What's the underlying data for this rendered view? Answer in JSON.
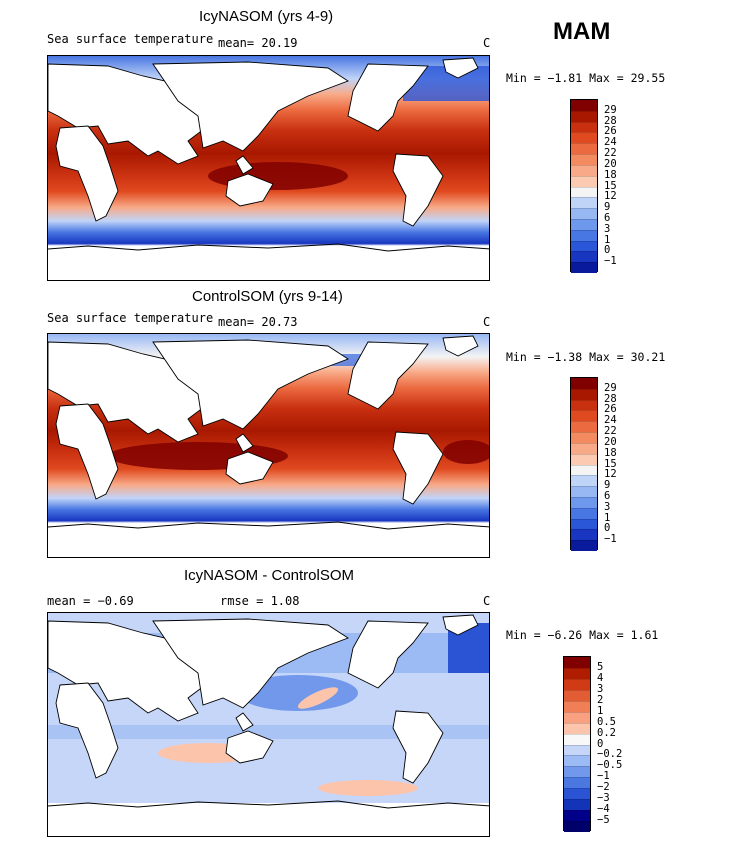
{
  "season_label": "MAM",
  "unit": "C",
  "panels": [
    {
      "id": "icy",
      "title": "IcyNASOM (yrs 4-9)",
      "subtitle_var": "Sea surface temperature",
      "mean_text": "mean=   20.19",
      "min_max_text": "Min =  −1.81 Max =  29.55",
      "colorbar_labels": [
        "29",
        "28",
        "26",
        "24",
        "22",
        "20",
        "18",
        "15",
        "12",
        "9",
        "6",
        "3",
        "1",
        "0",
        "−1"
      ]
    },
    {
      "id": "control",
      "title": "ControlSOM (yrs 9-14)",
      "subtitle_var": "Sea surface temperature",
      "mean_text": "mean=   20.73",
      "min_max_text": "Min =  −1.38 Max =  30.21",
      "colorbar_labels": [
        "29",
        "28",
        "26",
        "24",
        "22",
        "20",
        "18",
        "15",
        "12",
        "9",
        "6",
        "3",
        "1",
        "0",
        "−1"
      ]
    },
    {
      "id": "diff",
      "title": "IcyNASOM - ControlSOM",
      "mean_text": "mean =   −0.69",
      "rmse_text": "rmse =    1.08",
      "min_max_text": "Min =  −6.26 Max =    1.61",
      "colorbar_labels": [
        "5",
        "4",
        "3",
        "2",
        "1",
        "0.5",
        "0.2",
        "0",
        "−0.2",
        "−0.5",
        "−1",
        "−2",
        "−3",
        "−4",
        "−5"
      ]
    }
  ],
  "colors": {
    "sst_scale": [
      "#800000",
      "#a81800",
      "#c83010",
      "#e04a20",
      "#ec6a40",
      "#f48a60",
      "#f8aa88",
      "#fccab0",
      "#f4f4f4",
      "#c0d4f8",
      "#98b8f4",
      "#6e98ec",
      "#4876e2",
      "#2a56d8",
      "#1836c0",
      "#0a1a9c",
      "#000080"
    ],
    "diff_scale": [
      "#800000",
      "#b01c00",
      "#d03a14",
      "#e25c34",
      "#f07e56",
      "#f8a080",
      "#fcc4aa",
      "#f8f8f8",
      "#c6d6f8",
      "#9cbaf4",
      "#7298ec",
      "#4a78e0",
      "#2a54d4",
      "#1434b8",
      "#00008a"
    ]
  }
}
